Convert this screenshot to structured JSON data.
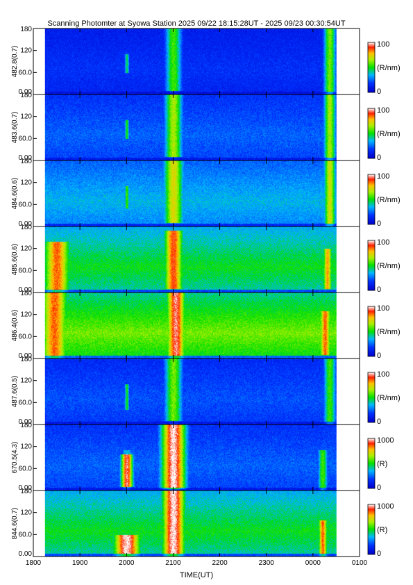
{
  "chart_data": {
    "type": "heatmap",
    "title": "Scanning Photomter at Syowa Station 2025 09/22 18:15:28UT - 2025 09/23 00:30:54UT",
    "xlabel": "TIME(UT)",
    "x_ticks": [
      "1800",
      "1900",
      "2000",
      "2100",
      "2200",
      "2300",
      "0000",
      "0100"
    ],
    "x_start_hour": 18.25,
    "x_end_hour": 24.5,
    "y_ticks": [
      "180",
      "120",
      "60.0",
      "0.00"
    ],
    "ylim": [
      0,
      180
    ],
    "panels": [
      {
        "label": "482.8(0.7)",
        "unit": "(R/nm)",
        "cmin": "0",
        "cmax": "100",
        "background": 0.15,
        "events": [
          {
            "time": 20.0,
            "width": 0.06,
            "intensity": 0.45,
            "ymin": 60,
            "ymax": 110
          },
          {
            "time": 21.0,
            "width": 0.2,
            "intensity": 0.55,
            "ymin": 10,
            "ymax": 180
          },
          {
            "time": 24.35,
            "width": 0.15,
            "intensity": 0.6,
            "ymin": 0,
            "ymax": 180
          }
        ]
      },
      {
        "label": "483.6(0.7)",
        "unit": "(R/nm)",
        "cmin": "0",
        "cmax": "100",
        "background": 0.22,
        "events": [
          {
            "time": 20.0,
            "width": 0.06,
            "intensity": 0.5,
            "ymin": 60,
            "ymax": 110
          },
          {
            "time": 21.0,
            "width": 0.22,
            "intensity": 0.65,
            "ymin": 10,
            "ymax": 180
          },
          {
            "time": 24.35,
            "width": 0.15,
            "intensity": 0.65,
            "ymin": 0,
            "ymax": 180
          }
        ]
      },
      {
        "label": "484.6(0.6)",
        "unit": "(R/nm)",
        "cmin": "0",
        "cmax": "100",
        "background": 0.32,
        "events": [
          {
            "time": 20.0,
            "width": 0.06,
            "intensity": 0.55,
            "ymin": 50,
            "ymax": 110
          },
          {
            "time": 21.0,
            "width": 0.25,
            "intensity": 0.72,
            "ymin": 10,
            "ymax": 180
          },
          {
            "time": 24.35,
            "width": 0.15,
            "intensity": 0.7,
            "ymin": 0,
            "ymax": 180
          }
        ]
      },
      {
        "label": "485.6(0.6)",
        "unit": "(R/nm)",
        "cmin": "0",
        "cmax": "100",
        "background": 0.45,
        "events": [
          {
            "time": 18.5,
            "width": 0.35,
            "intensity": 0.85,
            "ymin": 0,
            "ymax": 140
          },
          {
            "time": 21.0,
            "width": 0.25,
            "intensity": 0.88,
            "ymin": 10,
            "ymax": 170
          },
          {
            "time": 24.3,
            "width": 0.12,
            "intensity": 0.8,
            "ymin": 10,
            "ymax": 120
          }
        ]
      },
      {
        "label": "486.4(0.6)",
        "unit": "(R/nm)",
        "cmin": "0",
        "cmax": "100",
        "background": 0.55,
        "events": [
          {
            "time": 18.45,
            "width": 0.35,
            "intensity": 0.85,
            "ymin": 0,
            "ymax": 180
          },
          {
            "time": 21.05,
            "width": 0.25,
            "intensity": 0.95,
            "ymin": 0,
            "ymax": 180
          },
          {
            "time": 24.25,
            "width": 0.15,
            "intensity": 0.85,
            "ymin": 10,
            "ymax": 130
          }
        ]
      },
      {
        "label": "487.6(0.5)",
        "unit": "(R/nm)",
        "cmin": "0",
        "cmax": "100",
        "background": 0.2,
        "events": [
          {
            "time": 20.0,
            "width": 0.06,
            "intensity": 0.5,
            "ymin": 40,
            "ymax": 110
          },
          {
            "time": 21.0,
            "width": 0.22,
            "intensity": 0.6,
            "ymin": 10,
            "ymax": 180
          },
          {
            "time": 24.35,
            "width": 0.15,
            "intensity": 0.55,
            "ymin": 0,
            "ymax": 180
          }
        ]
      },
      {
        "label": "670.5(4.3)",
        "unit": "(R)",
        "cmin": "0",
        "cmax": "1000",
        "background": 0.22,
        "events": [
          {
            "time": 20.0,
            "width": 0.15,
            "intensity": 0.95,
            "ymin": 10,
            "ymax": 100
          },
          {
            "time": 21.0,
            "width": 0.3,
            "intensity": 1.0,
            "ymin": 5,
            "ymax": 180
          },
          {
            "time": 24.2,
            "width": 0.12,
            "intensity": 0.55,
            "ymin": 0,
            "ymax": 110
          }
        ]
      },
      {
        "label": "844.6(0.7)",
        "unit": "(R)",
        "cmin": "0",
        "cmax": "1000",
        "background": 0.45,
        "events": [
          {
            "time": 20.0,
            "width": 0.35,
            "intensity": 1.0,
            "ymin": 0,
            "ymax": 60
          },
          {
            "time": 21.0,
            "width": 0.3,
            "intensity": 1.0,
            "ymin": 0,
            "ymax": 180
          },
          {
            "time": 24.2,
            "width": 0.12,
            "intensity": 0.85,
            "ymin": 0,
            "ymax": 100
          }
        ]
      }
    ]
  }
}
